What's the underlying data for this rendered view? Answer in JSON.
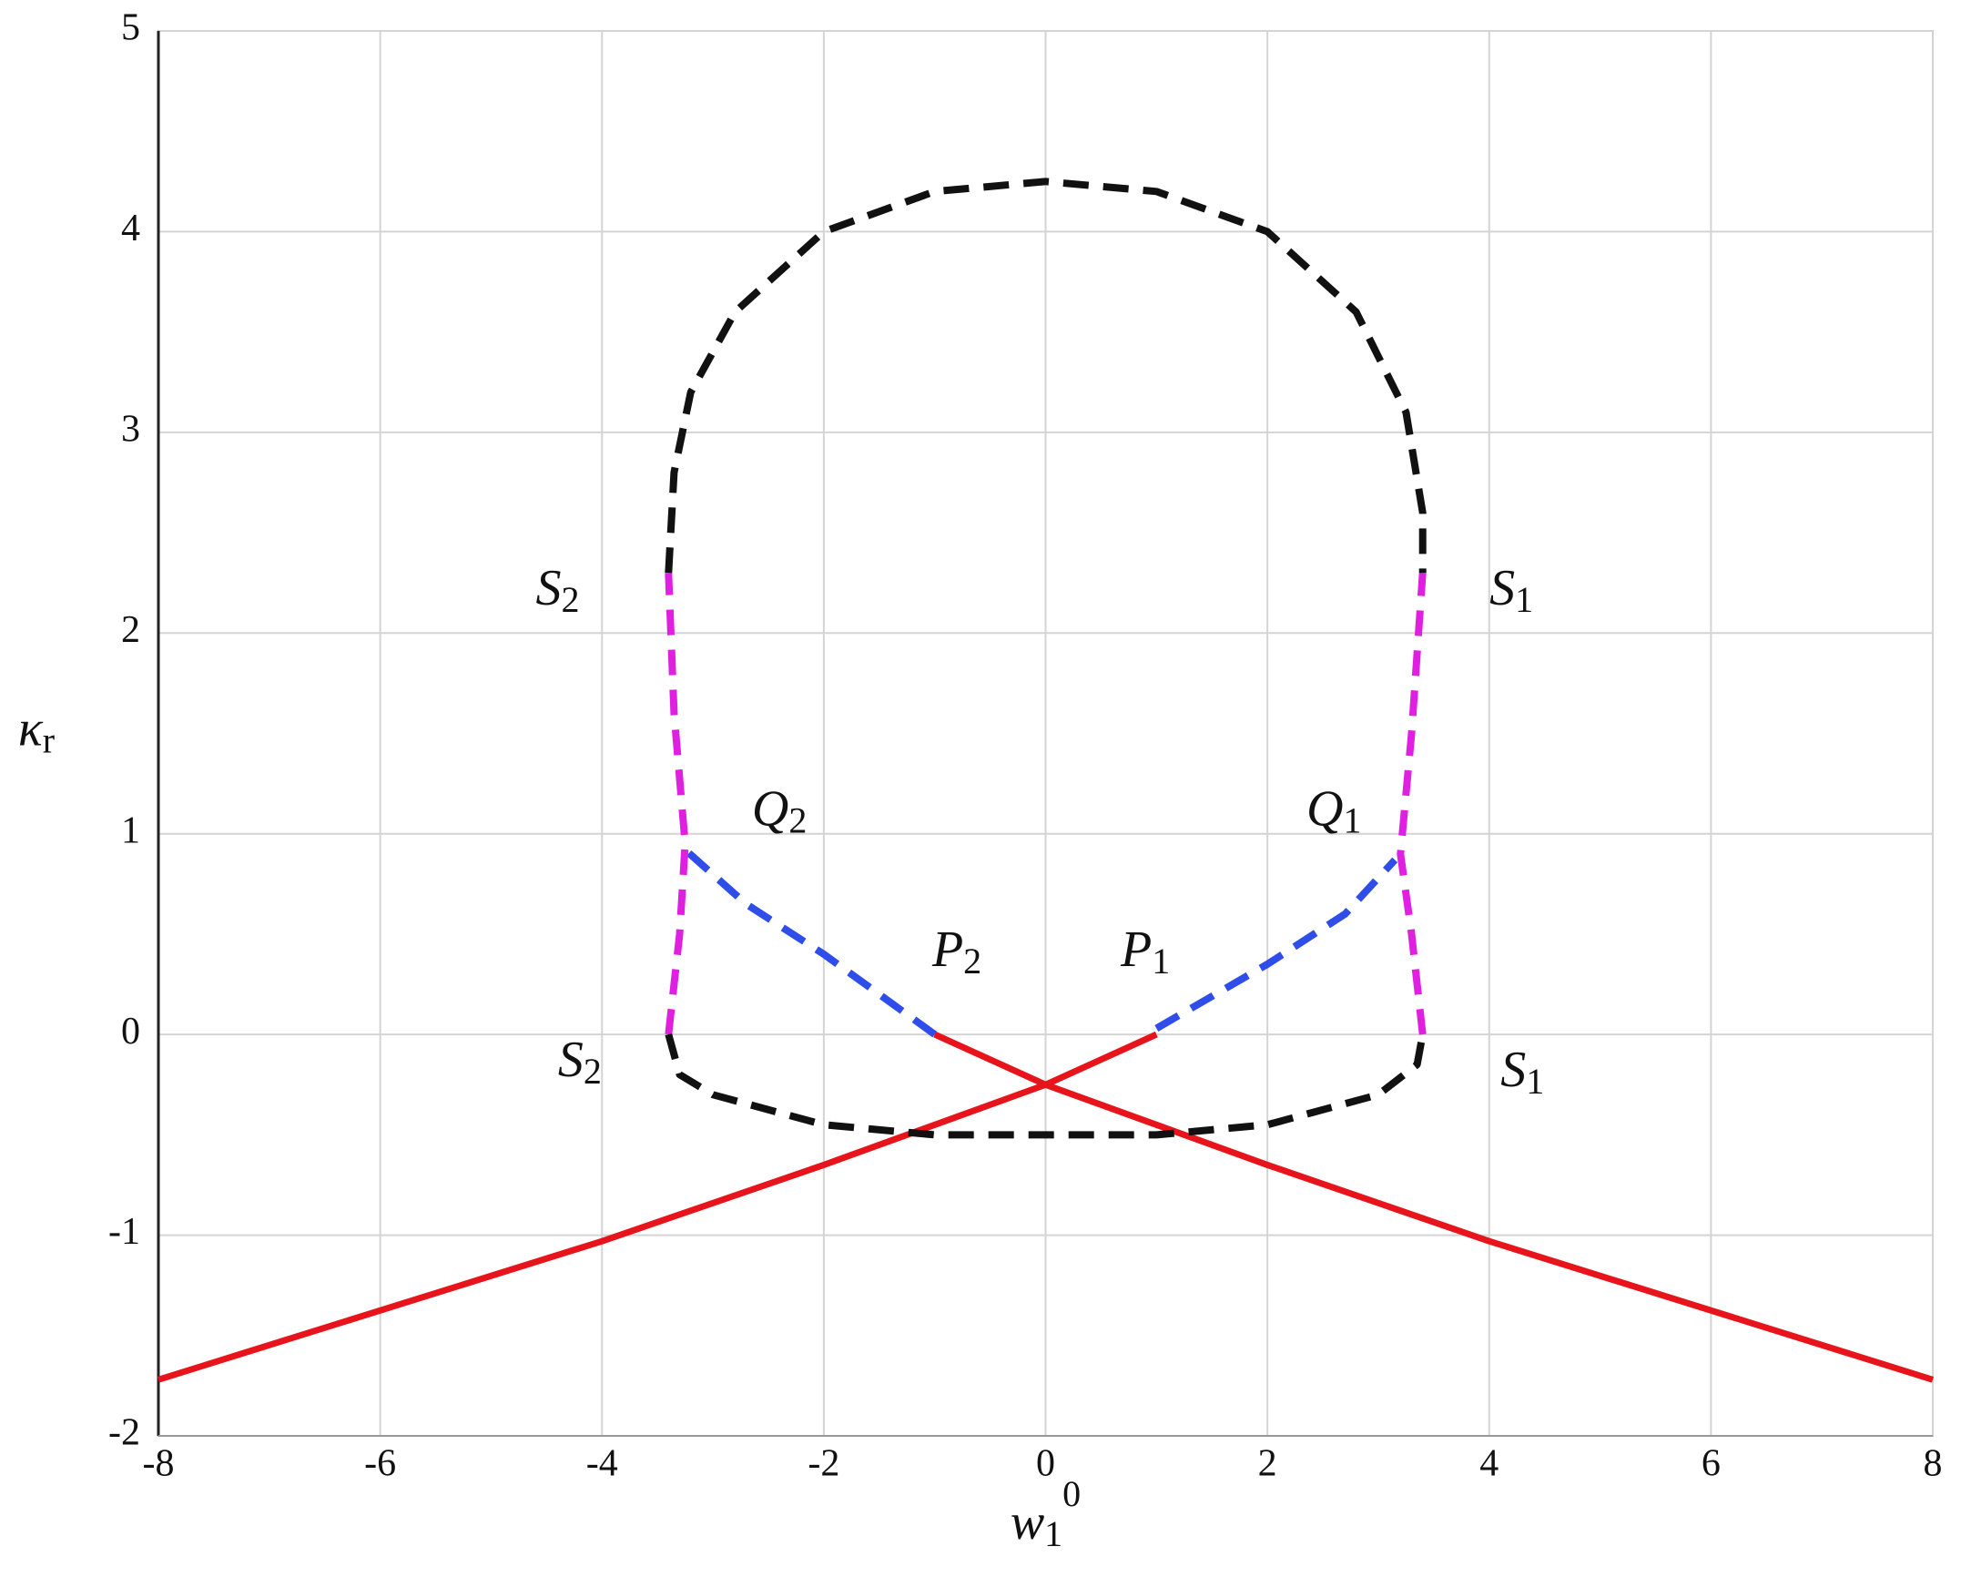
{
  "chart_data": {
    "type": "line",
    "xlabel": {
      "main": "w",
      "sub": "1",
      "sup": "0"
    },
    "ylabel": {
      "main": "κ",
      "sub": "r"
    },
    "xlim": [
      -8,
      8
    ],
    "xticks": [
      -8,
      -6,
      -4,
      -2,
      0,
      2,
      4,
      6,
      8
    ],
    "ylim": [
      -2,
      5
    ],
    "yticks": [
      -2,
      -1,
      0,
      1,
      2,
      3,
      4,
      5
    ],
    "grid": true,
    "series": [
      {
        "color": "#e8141c",
        "dash": false,
        "x": [
          -8,
          -4,
          -2,
          0,
          1
        ],
        "values": [
          -1.72,
          -1.03,
          -0.65,
          -0.25,
          0
        ]
      },
      {
        "color": "#e8141c",
        "dash": false,
        "x": [
          -1,
          0,
          2,
          4,
          8
        ],
        "values": [
          0,
          -0.25,
          -0.65,
          -1.03,
          -1.72
        ]
      },
      {
        "color": "#2f4de8",
        "dash": true,
        "x": [
          1,
          2,
          2.7,
          3.15
        ],
        "values": [
          0.03,
          0.35,
          0.6,
          0.87
        ]
      },
      {
        "color": "#2f4de8",
        "dash": true,
        "x": [
          -1,
          -2,
          -2.7,
          -3.25
        ],
        "values": [
          0,
          0.4,
          0.65,
          0.92
        ]
      },
      {
        "color": "#e020e0",
        "dash": true,
        "x": [
          3.4,
          3.3,
          3.2,
          3.3,
          3.4
        ],
        "values": [
          0,
          0.5,
          0.9,
          1.5,
          2.3
        ]
      },
      {
        "color": "#e020e0",
        "dash": true,
        "x": [
          -3.4,
          -3.3,
          -3.25,
          -3.35,
          -3.4
        ],
        "values": [
          0,
          0.5,
          0.95,
          1.6,
          2.3
        ]
      },
      {
        "color": "#111111",
        "dash": true,
        "x": [
          -3.4,
          -3.35,
          -3.2,
          -2.8,
          -2,
          -1,
          0,
          1,
          2,
          2.8,
          3.25,
          3.4,
          3.4
        ],
        "values": [
          2.3,
          2.8,
          3.2,
          3.6,
          4,
          4.2,
          4.25,
          4.2,
          4,
          3.6,
          3.1,
          2.6,
          2.3
        ]
      },
      {
        "color": "#111111",
        "dash": true,
        "x": [
          -3.4,
          -3.3,
          -3,
          -2,
          -1,
          0,
          1,
          2,
          3,
          3.35,
          3.4
        ],
        "values": [
          0,
          -0.2,
          -0.3,
          -0.45,
          -0.5,
          -0.5,
          -0.5,
          -0.45,
          -0.3,
          -0.15,
          0
        ]
      }
    ],
    "annotations": [
      {
        "main": "S",
        "sub": "2"
      },
      {
        "main": "S",
        "sub": "1"
      },
      {
        "main": "Q",
        "sub": "2"
      },
      {
        "main": "Q",
        "sub": "1"
      },
      {
        "main": "P",
        "sub": "2"
      },
      {
        "main": "P",
        "sub": "1"
      },
      {
        "main": "S",
        "sub": "2"
      },
      {
        "main": "S",
        "sub": "1"
      }
    ]
  }
}
